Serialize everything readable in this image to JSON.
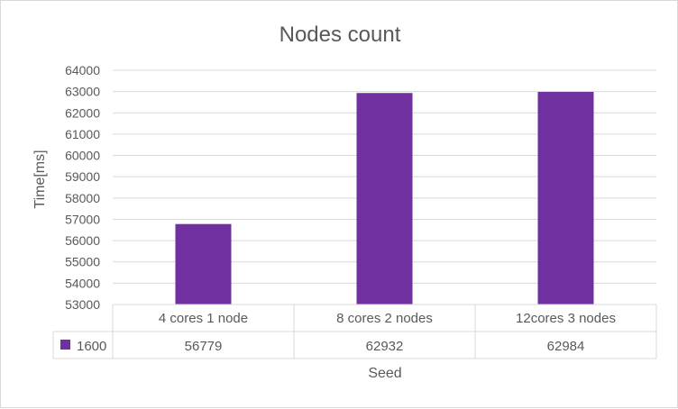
{
  "chart_data": {
    "type": "bar",
    "title": "Nodes count",
    "xlabel": "Seed",
    "ylabel": "Time[ms]",
    "categories": [
      "4 cores 1 node",
      "8 cores 2 nodes",
      "12cores 3 nodes"
    ],
    "series": [
      {
        "name": "1600",
        "values": [
          56779,
          62932,
          62984
        ],
        "color": "#7030a0"
      }
    ],
    "ylim": [
      53000,
      64000
    ],
    "y_ticks": [
      "53000",
      "54000",
      "55000",
      "56000",
      "57000",
      "58000",
      "59000",
      "60000",
      "61000",
      "62000",
      "63000",
      "64000"
    ],
    "data_table": {
      "row_label": "1600",
      "values": [
        "56779",
        "62932",
        "62984"
      ]
    },
    "grid": true,
    "legend": "data-table"
  }
}
